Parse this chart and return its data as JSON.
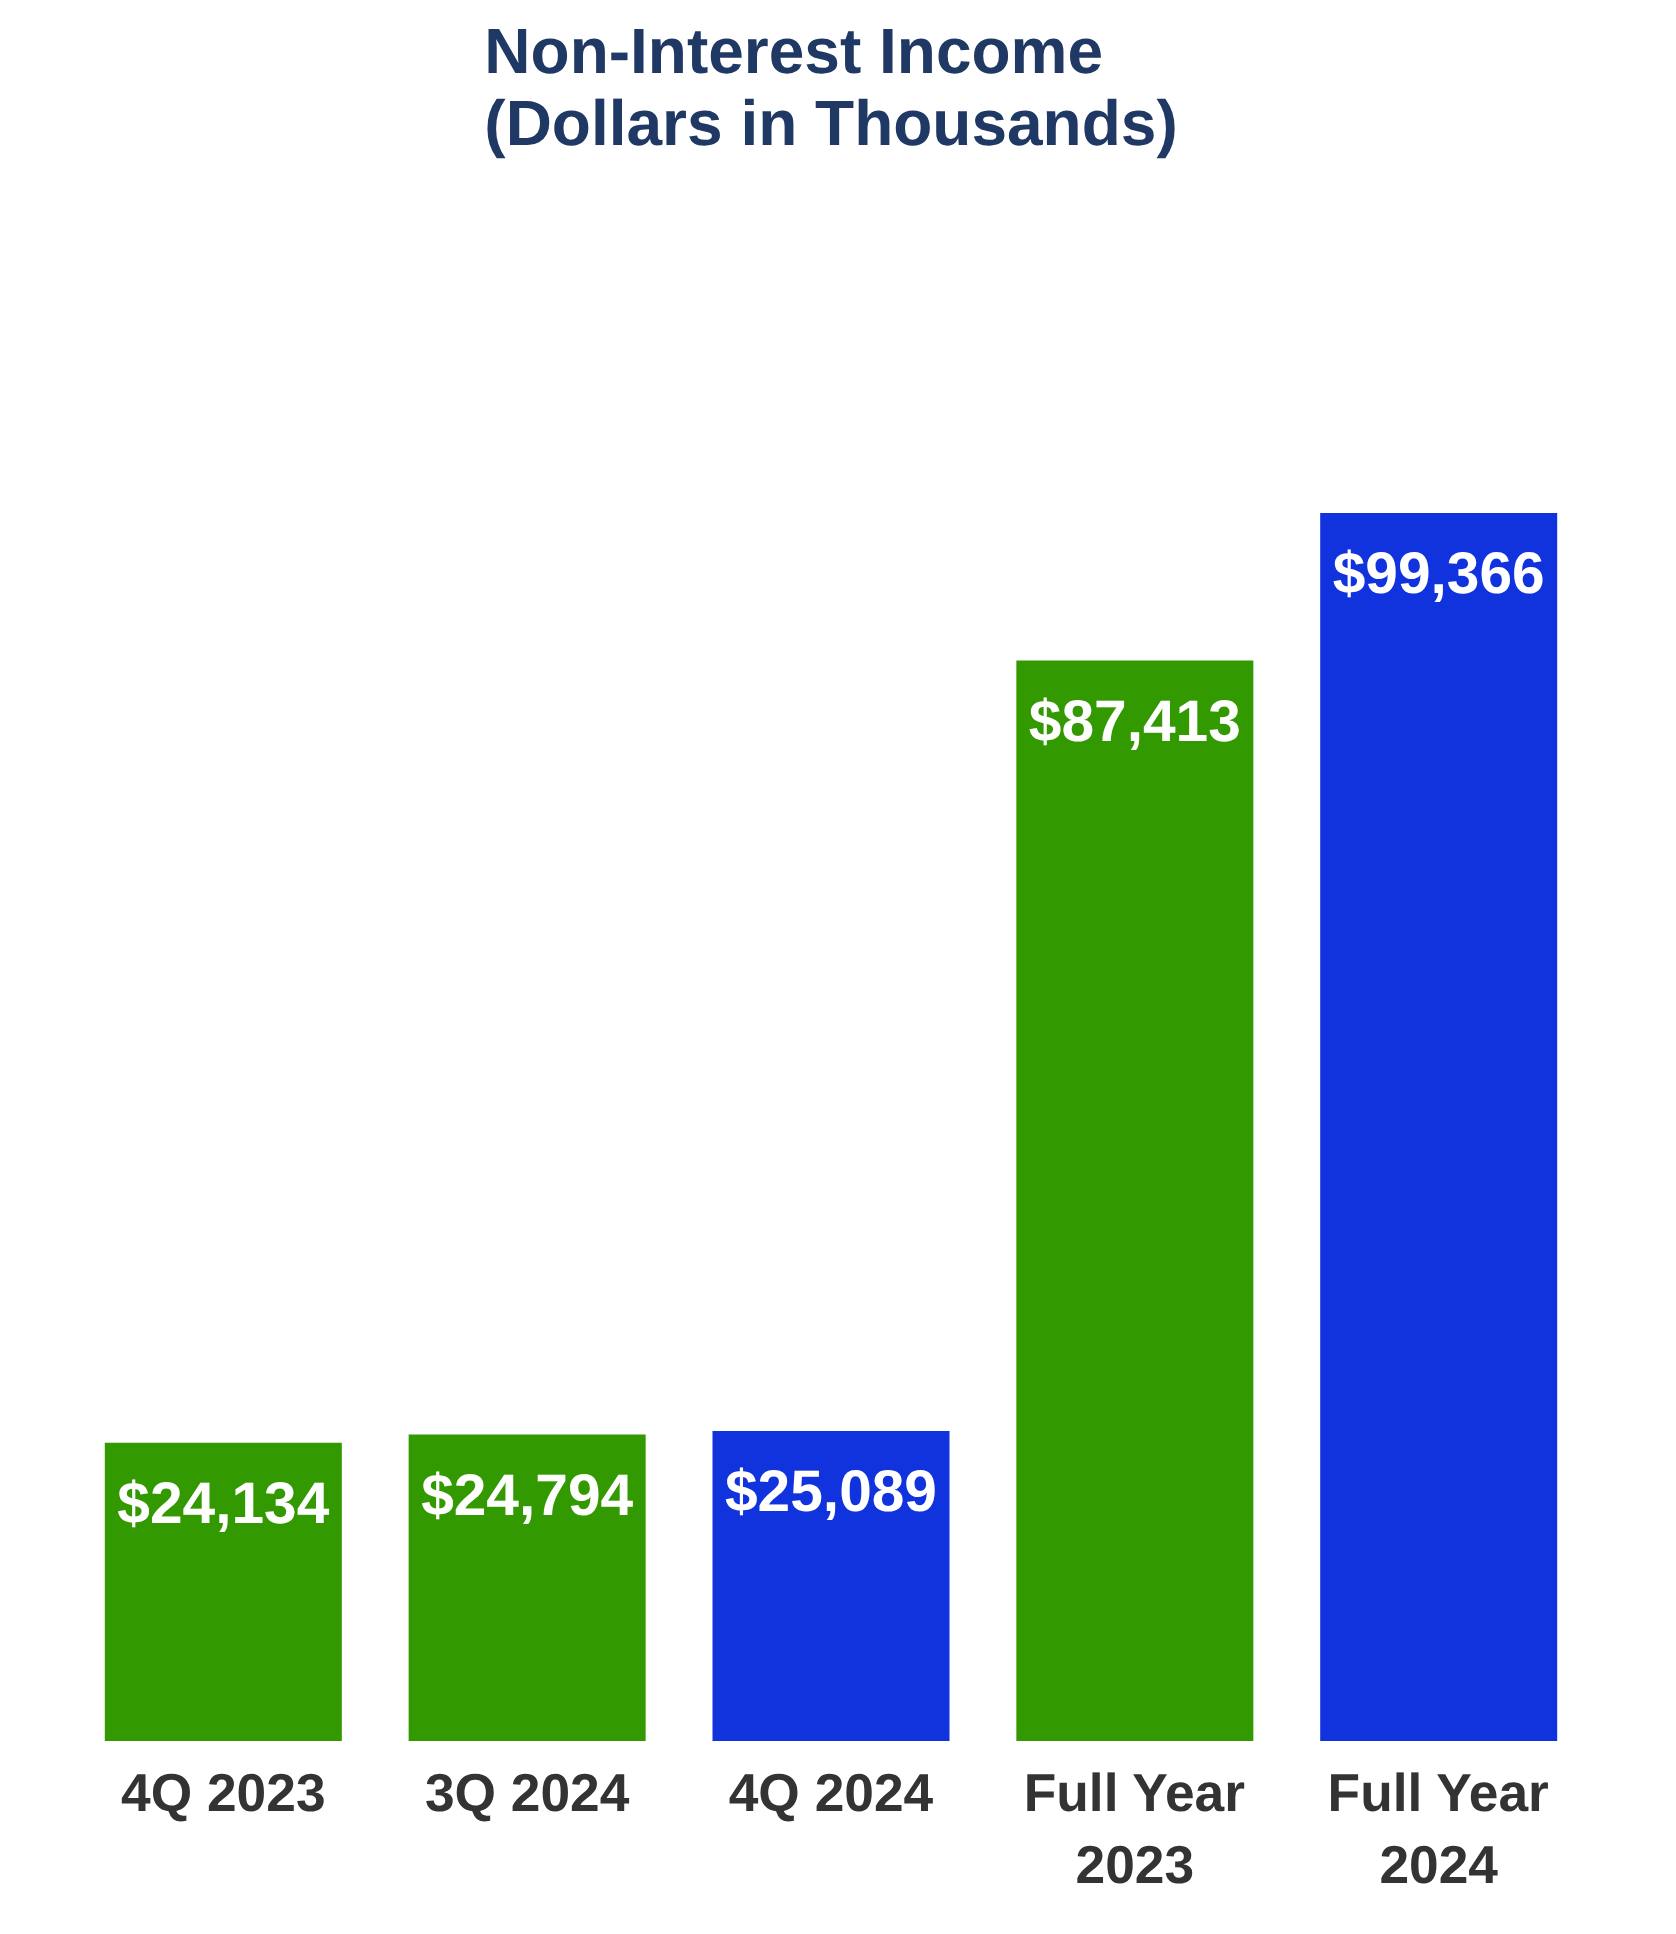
{
  "chart_data": {
    "type": "bar",
    "title": "Non-Interest Income\n(Dollars in Thousands)",
    "categories": [
      "4Q 2023",
      "3Q 2024",
      "4Q 2024",
      "Full Year 2023",
      "Full Year 2024"
    ],
    "values": [
      24134,
      24794,
      25089,
      87413,
      99366
    ],
    "colors": [
      "#339900",
      "#339900",
      "#1133dd",
      "#339900",
      "#1133dd"
    ],
    "value_labels": [
      "$24,134",
      "$24,794",
      "$25,089",
      "$87,413",
      "$99,366"
    ],
    "grid": false
  }
}
